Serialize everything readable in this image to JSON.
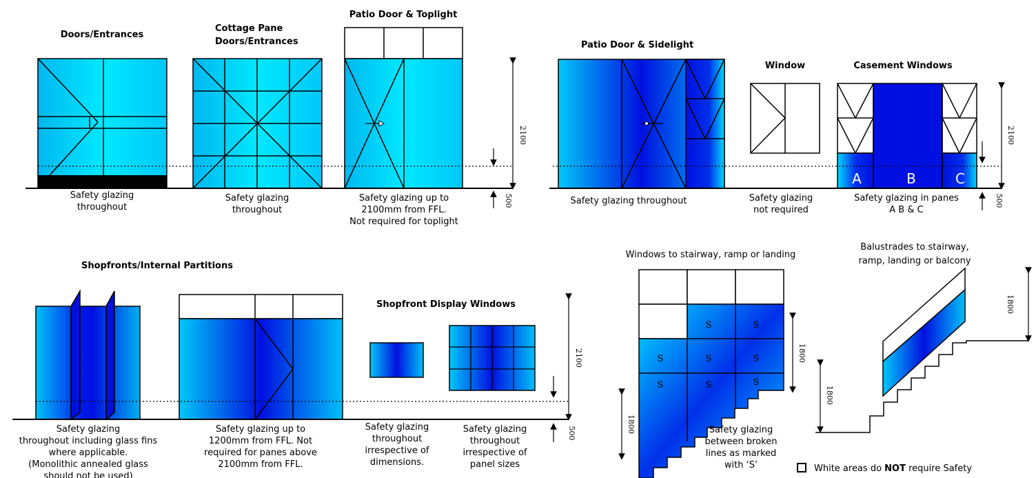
{
  "headings": {
    "doors": "Doors/Entrances",
    "cottage_1": "Cottage Pane",
    "cottage_2": "Doors/Entrances",
    "patio_toplight": "Patio Door & Toplight",
    "patio_sidelight": "Patio Door & Sidelight",
    "window": "Window",
    "casement": "Casement Windows",
    "shopfronts": "Shopfronts/Internal Partitions",
    "shopfront_display": "Shopfront Display Windows",
    "stairway_windows": "Windows to stairway, ramp or landing",
    "balustrades_1": "Balustrades to stairway,",
    "balustrades_2": "ramp, landing or balcony"
  },
  "captions": {
    "doors": [
      "Safety glazing",
      "throughout"
    ],
    "cottage": [
      "Safety glazing",
      "throughout"
    ],
    "patio_toplight": [
      "Safety glazing up to",
      "2100mm from FFL.",
      "Not required for toplight"
    ],
    "patio_sidelight": [
      "Safety glazing throughout"
    ],
    "window": [
      "Safety glazing",
      "not required"
    ],
    "casement": [
      "Safety glazing in panes",
      "A B & C"
    ],
    "shopfronts": [
      "Safety glazing",
      "throughout including glass fins",
      "where applicable.",
      "(Monolithic annealed glass",
      "should not be used)"
    ],
    "shop_partition": [
      "Safety glazing up to",
      "1200mm from FFL. Not",
      "required for panes above",
      "2100mm from FFL."
    ],
    "display_small": [
      "Safety glazing",
      "throughout",
      "irrespective of",
      "dimensions."
    ],
    "display_grid": [
      "Safety glazing",
      "throughout",
      "irrespective of",
      "panel sizes"
    ],
    "stairway": [
      "Safety glazing",
      "between broken",
      "lines as marked",
      "with ‘S’"
    ]
  },
  "pane_letters": [
    "A",
    "B",
    "C"
  ],
  "s_mark": "S",
  "dimensions": {
    "d2100": "2100",
    "d500": "500",
    "d1800": "1800"
  },
  "legend": {
    "prefix": "White areas do ",
    "strong": "NOT",
    "suffix": " require Safety"
  },
  "colors": {
    "cyan": "#00e5ff",
    "blue": "#0000e0",
    "line": "#000000"
  }
}
